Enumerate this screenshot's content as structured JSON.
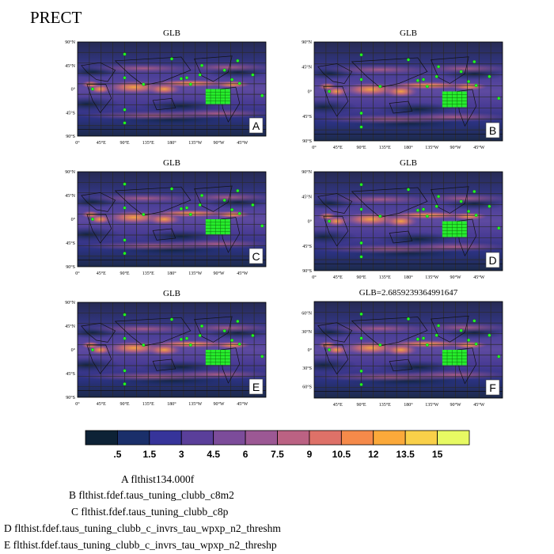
{
  "page_title": "PRECT",
  "colors": {
    "colorbar": [
      "#0d2236",
      "#1a2f6a",
      "#36349a",
      "#5a3f9a",
      "#7c4c9a",
      "#9c5894",
      "#bb6283",
      "#de7168",
      "#f58a4a",
      "#fba93a",
      "#f9d049",
      "#e7fa63"
    ],
    "marker": "#22ff22",
    "grid": "#2a2a2a"
  },
  "panels": [
    {
      "title": "GLB",
      "label": "A"
    },
    {
      "title": "GLB",
      "label": "B"
    },
    {
      "title": "GLB",
      "label": "C"
    },
    {
      "title": "GLB",
      "label": "D"
    },
    {
      "title": "GLB",
      "label": "E"
    },
    {
      "title": "GLB=2.6859239364991647",
      "label": "F"
    }
  ],
  "latitude_ticks_panels_a_e": [
    "90°N",
    "45°N",
    "0°",
    "45°S",
    "90°S"
  ],
  "latitude_ticks_panel_f": [
    "60°N",
    "30°N",
    "0°",
    "30°S",
    "60°S"
  ],
  "longitude_ticks_panels_a_e": [
    "0°",
    "45°E",
    "90°E",
    "135°E",
    "180°",
    "135°W",
    "90°W",
    "45°W"
  ],
  "longitude_ticks_panel_f": [
    "45°E",
    "90°E",
    "135°E",
    "180°",
    "135°W",
    "90°W",
    "45°W"
  ],
  "colorbar_labels": [
    ".5",
    "1.5",
    "3",
    "4.5",
    "6",
    "7.5",
    "9",
    "10.5",
    "12",
    "13.5",
    "15"
  ],
  "legend_entries": [
    "A  flthist134.000f",
    "B  flthist.fdef.taus_tuning_clubb_c8m2",
    "C  flthist.fdef.taus_tuning_clubb_c8p",
    "D  flthist.fdef.taus_tuning_clubb_c_invrs_tau_wpxp_n2_threshm",
    "E  flthist.fdef.taus_tuning_clubb_c_invrs_tau_wpxp_n2_threshp"
  ],
  "chart_data": {
    "type": "heatmap",
    "title": "PRECT",
    "panels": [
      "GLB",
      "GLB",
      "GLB",
      "GLB",
      "GLB",
      "GLB=2.6859239364991647"
    ],
    "colorbar_levels": [
      0.5,
      1.5,
      3,
      4.5,
      6,
      7.5,
      9,
      10.5,
      12,
      13.5,
      15
    ],
    "series": [
      {
        "name": "flthist134.000f"
      },
      {
        "name": "flthist.fdef.taus_tuning_clubb_c8m2"
      },
      {
        "name": "flthist.fdef.taus_tuning_clubb_c8p"
      },
      {
        "name": "flthist.fdef.taus_tuning_clubb_c_invrs_tau_wpxp_n2_threshm"
      },
      {
        "name": "flthist.fdef.taus_tuning_clubb_c_invrs_tau_wpxp_n2_threshp"
      }
    ]
  }
}
